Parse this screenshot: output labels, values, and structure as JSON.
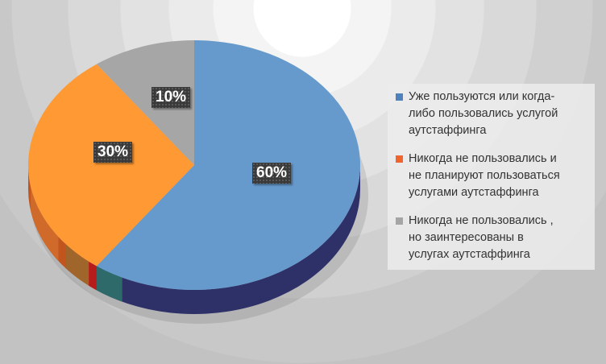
{
  "chart_data": {
    "type": "pie",
    "style": "3d",
    "categories": [
      "Уже пользуются или когда-либо пользовались услугой аутстаффинга",
      "Никогда не пользовались и не планируют пользоваться услугами аутстаффинга",
      "Никогда не пользовались , но заинтересованы в услугах аутстаффинга"
    ],
    "values": [
      60,
      30,
      10
    ],
    "data_labels": [
      "60%",
      "30%",
      "10%"
    ],
    "slice_colors": [
      "#6699cc",
      "#ff9933",
      "#a6a6a6"
    ],
    "legend_colors": [
      "#4f81bd",
      "#f0642d",
      "#a5a5a5"
    ],
    "legend_position": "right",
    "legend": [
      {
        "lines": [
          "Уже пользуются или когда-",
          "либо пользовались услугой",
          "аутстаффинга"
        ]
      },
      {
        "lines": [
          "Никогда не пользовались и",
          "не планируют пользоваться",
          "услугами аутстаффинга"
        ]
      },
      {
        "lines": [
          "Никогда не пользовались ,",
          "но заинтересованы в",
          "услугах аутстаффинга"
        ]
      }
    ]
  }
}
